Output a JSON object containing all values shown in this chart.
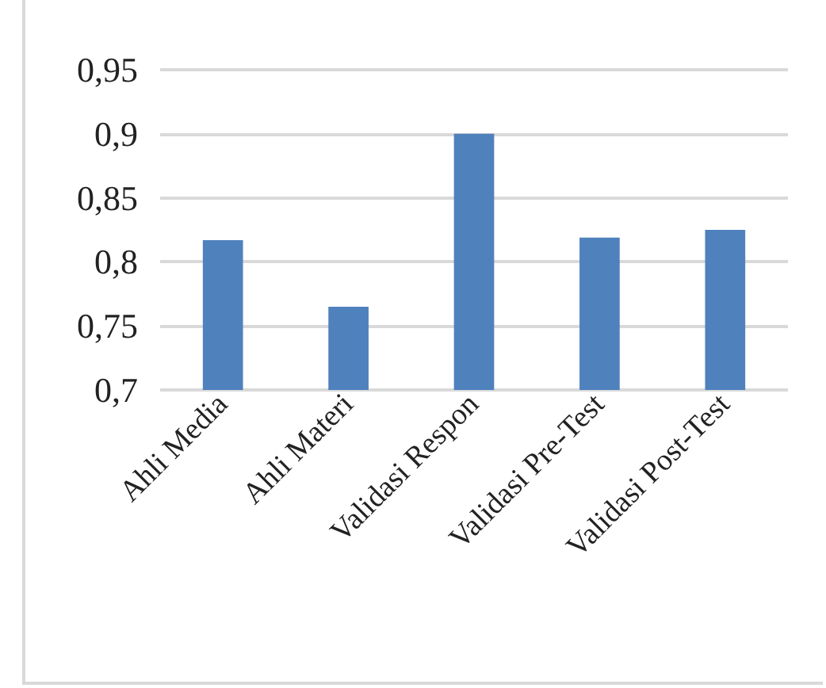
{
  "chart_data": {
    "type": "bar",
    "categories": [
      "Ahli Media",
      "Ahli Materi",
      "Validasi Respon",
      "Validasi Pre-Test",
      "Validasi Post-Test"
    ],
    "values": [
      0.817,
      0.765,
      0.9,
      0.819,
      0.825
    ],
    "color": "#4f81bd",
    "ylim": [
      0.7,
      0.95
    ],
    "yticks": [
      {
        "value": 0.7,
        "label": "0,7"
      },
      {
        "value": 0.75,
        "label": "0,75"
      },
      {
        "value": 0.8,
        "label": "0,8"
      },
      {
        "value": 0.85,
        "label": "0,85"
      },
      {
        "value": 0.9,
        "label": "0,9"
      },
      {
        "value": 0.95,
        "label": "0,95"
      }
    ],
    "grid": "y"
  }
}
